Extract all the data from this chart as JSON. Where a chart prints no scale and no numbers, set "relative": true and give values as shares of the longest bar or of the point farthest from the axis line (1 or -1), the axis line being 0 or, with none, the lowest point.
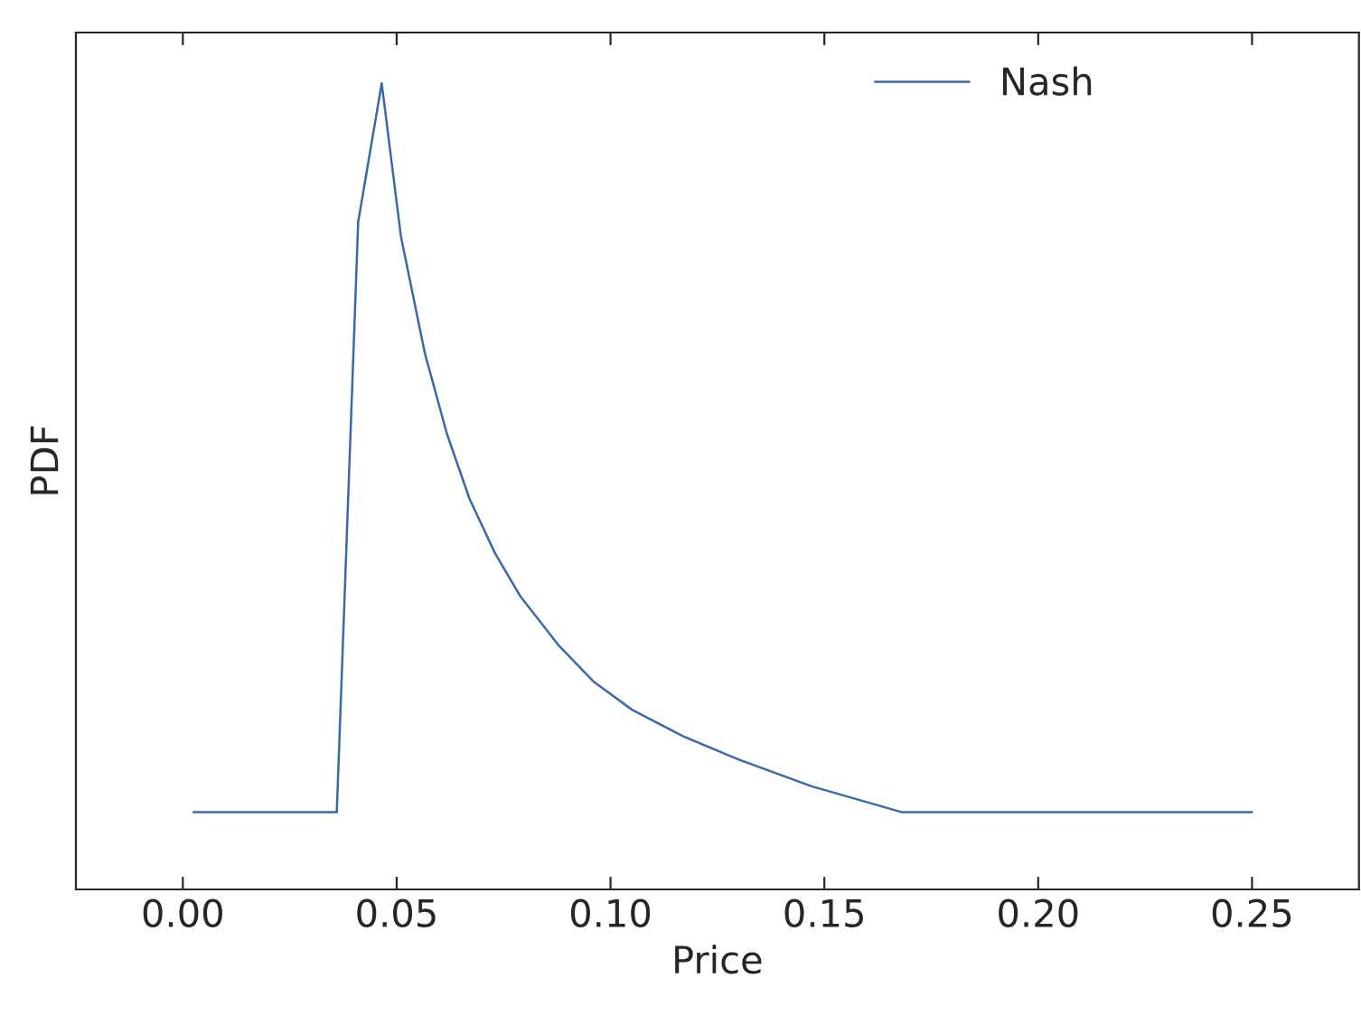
{
  "chart_data": {
    "type": "line",
    "xlabel": "Price",
    "ylabel": "PDF",
    "relative": true,
    "xlim": [
      -0.025,
      0.275
    ],
    "xticks": [
      {
        "value": 0,
        "label": "0.00"
      },
      {
        "value": 0.05,
        "label": "0.05"
      },
      {
        "value": 0.1,
        "label": "0.10"
      },
      {
        "value": 0.15,
        "label": "0.15"
      },
      {
        "value": 0.2,
        "label": "0.20"
      },
      {
        "value": 0.25,
        "label": "0.25"
      }
    ],
    "series": [
      {
        "name": "Nash",
        "color": "#3a68ad",
        "x": [
          0.0025,
          0.036,
          0.041,
          0.0465,
          0.051,
          0.0566,
          0.0617,
          0.067,
          0.073,
          0.079,
          0.088,
          0.096,
          0.105,
          0.117,
          0.13,
          0.147,
          0.168,
          0.25
        ],
        "values": [
          0.096,
          0.096,
          0.828,
          1.0,
          0.81,
          0.665,
          0.566,
          0.485,
          0.417,
          0.363,
          0.302,
          0.258,
          0.223,
          0.19,
          0.161,
          0.128,
          0.096,
          0.096
        ]
      }
    ],
    "legend": "top right",
    "grid": false,
    "marker": "none",
    "line_style": "solid"
  }
}
